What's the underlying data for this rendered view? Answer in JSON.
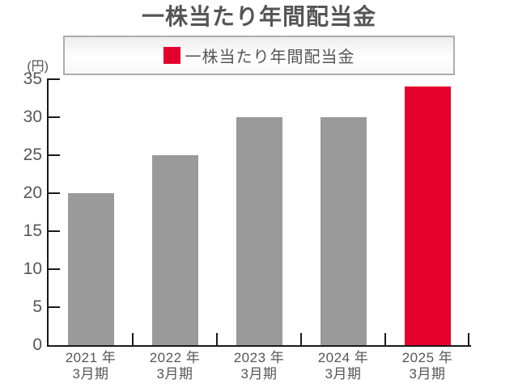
{
  "title": "一株当たり年間配当金",
  "legend": {
    "label": "一株当たり年間配当金",
    "swatch_color": "#e3002d"
  },
  "y_axis_unit": "(円)",
  "colors": {
    "bar_default": "#9a9a9a",
    "bar_highlight": "#e3002d",
    "axis": "#1a1a1a",
    "text": "#555555"
  },
  "chart_data": {
    "type": "bar",
    "title": "一株当たり年間配当金",
    "categories": [
      {
        "line1": "2021 年",
        "line2": "3月期"
      },
      {
        "line1": "2022 年",
        "line2": "3月期"
      },
      {
        "line1": "2023 年",
        "line2": "3月期"
      },
      {
        "line1": "2024 年",
        "line2": "3月期"
      },
      {
        "line1": "2025 年",
        "line2": "3月期"
      }
    ],
    "values": [
      20,
      25,
      30,
      30,
      34
    ],
    "highlight_index": 4,
    "bar_color_default": "#9a9a9a",
    "bar_color_highlight": "#e3002d",
    "ylabel": "(円)",
    "ylim": [
      0,
      35
    ],
    "yticks": [
      0,
      5,
      10,
      15,
      20,
      25,
      30,
      35
    ],
    "grid": false,
    "tick_direction": "in",
    "legend_entries": [
      "一株当たり年間配当金"
    ],
    "legend_position": "top"
  }
}
